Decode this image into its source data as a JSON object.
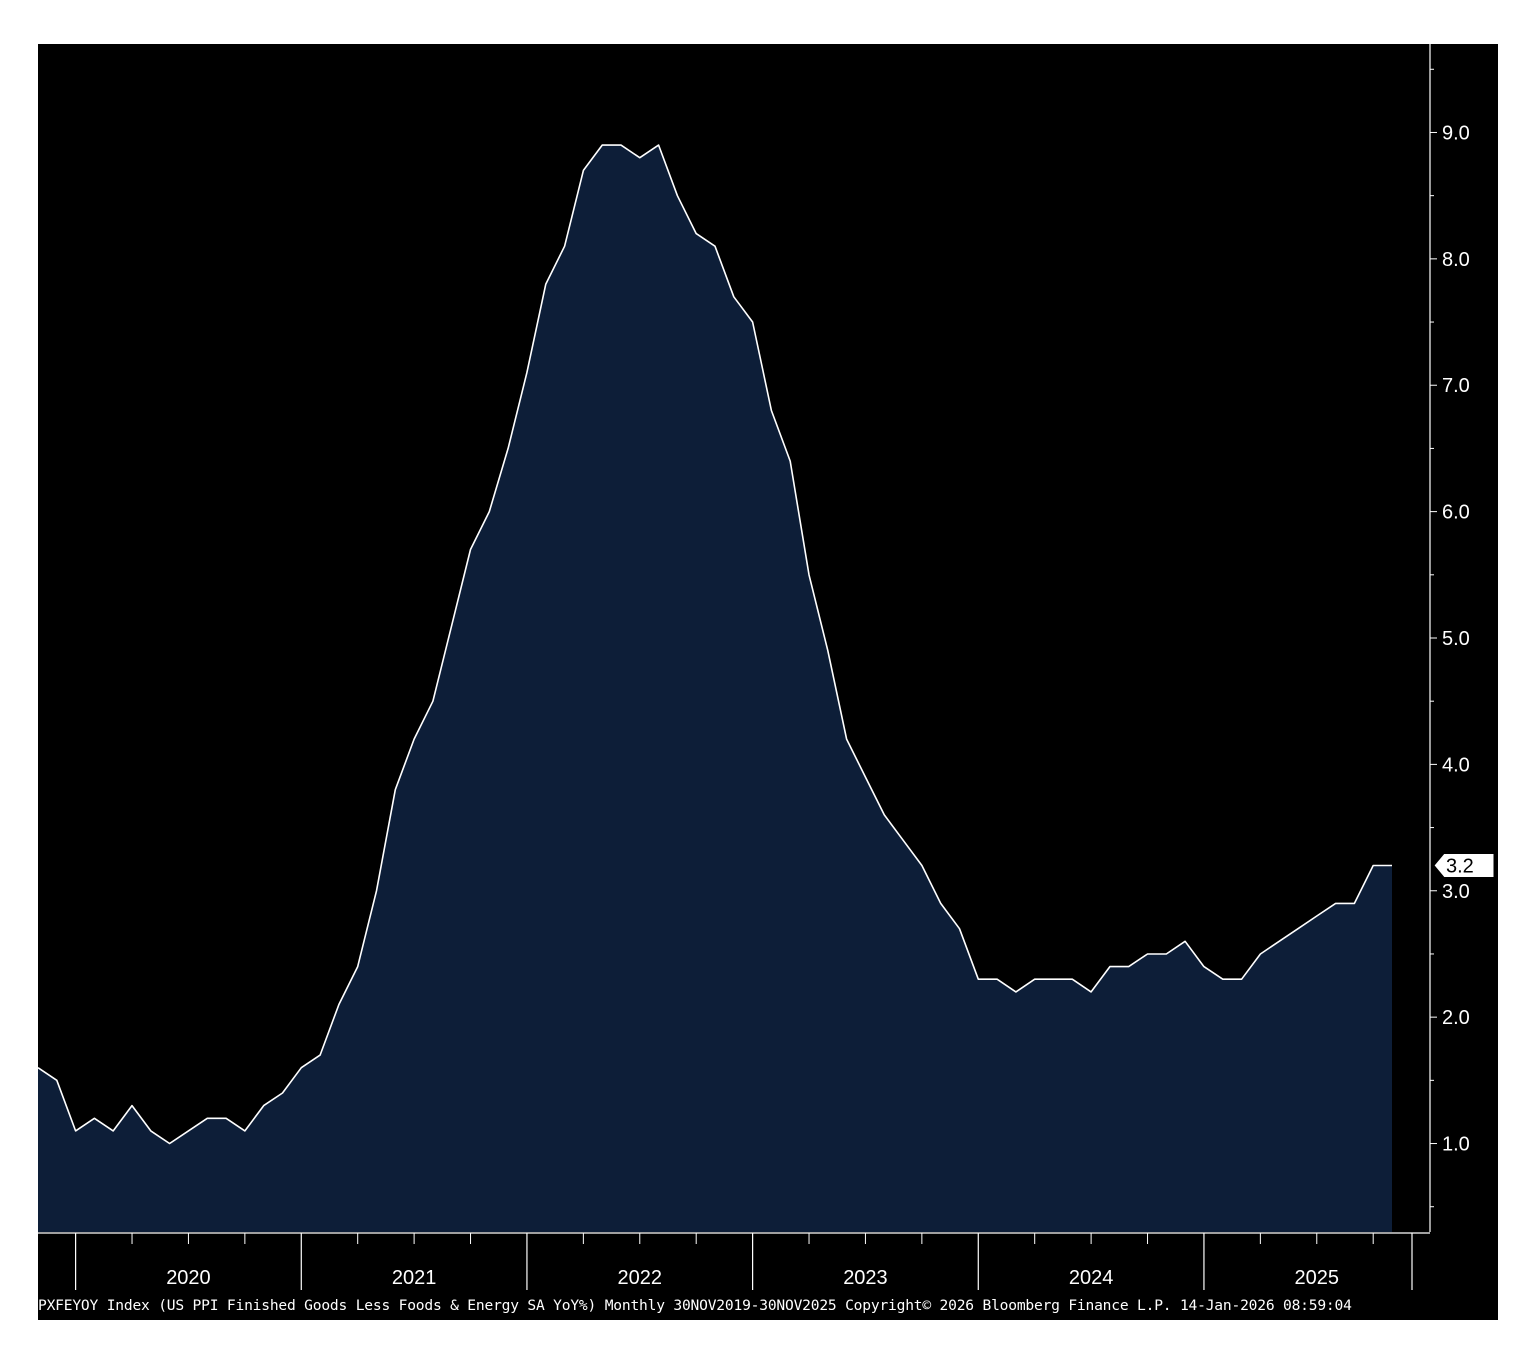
{
  "chart_data": {
    "type": "area",
    "ticker": "PXFEYOY Index",
    "footer": "PXFEYOY Index (US PPI Finished Goods Less Foods & Energy SA YoY%) Monthly 30NOV2019-30NOV2025 Copyright© 2026 Bloomberg Finance L.P. 14-Jan-2026 08:59:04",
    "x_start": "2019-11",
    "x_end": "2025-11",
    "frequency": "monthly",
    "x_tick_labels": [
      "2020",
      "2021",
      "2022",
      "2023",
      "2024",
      "2025"
    ],
    "y_tick_labels": [
      "1.0",
      "2.0",
      "3.0",
      "4.0",
      "5.0",
      "6.0",
      "7.0",
      "8.0",
      "9.0"
    ],
    "ylim": [
      0.3,
      9.7
    ],
    "y_axis_side": "right",
    "grid": false,
    "last_value_label": "3.2",
    "colors": {
      "background": "#000000",
      "area_fill": "#0d1e38",
      "line": "#ffffff",
      "text": "#ffffff"
    },
    "series": [
      {
        "values": [
          1.6,
          1.5,
          1.1,
          1.2,
          1.1,
          1.3,
          1.1,
          1.0,
          1.1,
          1.2,
          1.2,
          1.1,
          1.3,
          1.4,
          1.6,
          1.7,
          2.1,
          2.4,
          3.0,
          3.8,
          4.2,
          4.5,
          5.1,
          5.7,
          6.0,
          6.5,
          7.1,
          7.8,
          8.1,
          8.7,
          8.9,
          8.9,
          8.8,
          8.9,
          8.5,
          8.2,
          8.1,
          7.7,
          7.5,
          6.8,
          6.4,
          5.5,
          4.9,
          4.2,
          3.9,
          3.6,
          3.4,
          3.2,
          2.9,
          2.7,
          2.3,
          2.3,
          2.2,
          2.3,
          2.3,
          2.3,
          2.2,
          2.4,
          2.4,
          2.5,
          2.5,
          2.6,
          2.4,
          2.3,
          2.3,
          2.5,
          2.6,
          2.7,
          2.8,
          2.9,
          2.9,
          3.2,
          3.2
        ]
      }
    ]
  }
}
